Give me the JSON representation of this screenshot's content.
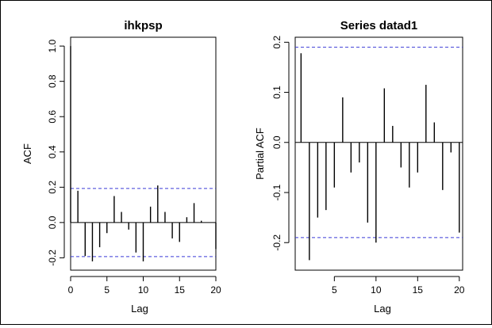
{
  "chart_data": [
    {
      "type": "bar",
      "title": "ihkpsp",
      "xlabel": "Lag",
      "ylabel": "ACF",
      "xlim": [
        0,
        20
      ],
      "ylim": [
        -0.27,
        1.05
      ],
      "xticks": [
        0,
        5,
        10,
        15,
        20
      ],
      "yticks": [
        "-0.2",
        "0.0",
        "0.2",
        "0.4",
        "0.6",
        "0.8",
        "1.0"
      ],
      "conf_bound": 0.193,
      "bound_color": "#3b3bd6",
      "x": [
        0,
        1,
        2,
        3,
        4,
        5,
        6,
        7,
        8,
        9,
        10,
        11,
        12,
        13,
        14,
        15,
        16,
        17,
        18,
        19,
        20
      ],
      "values": [
        1.0,
        0.18,
        -0.19,
        -0.22,
        -0.14,
        -0.06,
        0.15,
        0.06,
        -0.04,
        -0.17,
        -0.22,
        0.09,
        0.21,
        0.06,
        -0.09,
        -0.11,
        0.03,
        0.11,
        0.01,
        0.0,
        -0.15
      ]
    },
    {
      "type": "bar",
      "title": "Series  datad1",
      "xlabel": "Lag",
      "ylabel": "Partial ACF",
      "xlim": [
        0.3,
        20.4
      ],
      "ylim": [
        -0.255,
        0.21
      ],
      "xticks": [
        5,
        10,
        15,
        20
      ],
      "yticks": [
        "-0.2",
        "-0.1",
        "0.0",
        "0.1",
        "0.2"
      ],
      "conf_bound": 0.19,
      "bound_color": "#3b3bd6",
      "x": [
        1,
        2,
        3,
        4,
        5,
        6,
        7,
        8,
        9,
        10,
        11,
        12,
        13,
        14,
        15,
        16,
        17,
        18,
        19,
        20
      ],
      "values": [
        0.178,
        -0.235,
        -0.15,
        -0.135,
        -0.09,
        0.09,
        -0.06,
        -0.04,
        -0.16,
        -0.2,
        0.108,
        0.033,
        -0.05,
        -0.09,
        -0.06,
        0.115,
        0.04,
        -0.095,
        -0.02,
        -0.18
      ]
    }
  ]
}
